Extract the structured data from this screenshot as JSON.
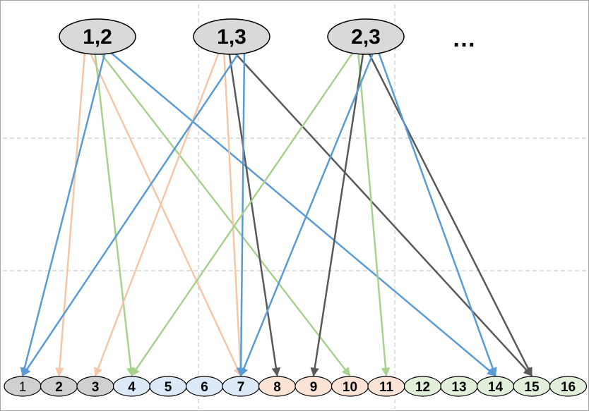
{
  "diagram": {
    "pairs": [
      "1,2",
      "1,3",
      "2,3"
    ],
    "ellipsis": "…",
    "targets": [
      "1",
      "2",
      "3",
      "4",
      "5",
      "6",
      "7",
      "8",
      "9",
      "10",
      "11",
      "12",
      "13",
      "14",
      "15",
      "16"
    ],
    "target_groups": [
      {
        "members": [
          "1",
          "2",
          "3"
        ],
        "fill": "#d0d0d0"
      },
      {
        "members": [
          "4",
          "5",
          "6",
          "7"
        ],
        "fill": "#dde9f6"
      },
      {
        "members": [
          "8",
          "9",
          "10",
          "11"
        ],
        "fill": "#fbe3d6"
      },
      {
        "members": [
          "12",
          "13",
          "14",
          "15",
          "16"
        ],
        "fill": "#e2efda"
      }
    ],
    "colors": {
      "orange": "#f4c7a8",
      "green": "#a9d18e",
      "blue": "#5b9bd5",
      "dark": "#595959",
      "node_fill_pair": "#d9d9d9",
      "grid": "#bfbfbf",
      "border": "#a6a6a6"
    },
    "edges": [
      {
        "from": "1,2",
        "to": "2",
        "color": "orange"
      },
      {
        "from": "1,2",
        "to": "7",
        "color": "orange"
      },
      {
        "from": "1,2",
        "to": "4",
        "color": "green"
      },
      {
        "from": "1,2",
        "to": "10",
        "color": "green"
      },
      {
        "from": "1,2",
        "to": "1",
        "color": "blue"
      },
      {
        "from": "1,2",
        "to": "14",
        "color": "blue"
      },
      {
        "from": "1,3",
        "to": "3",
        "color": "orange"
      },
      {
        "from": "1,3",
        "to": "7",
        "color": "orange"
      },
      {
        "from": "1,3",
        "to": "8",
        "color": "dark"
      },
      {
        "from": "1,3",
        "to": "15",
        "color": "dark"
      },
      {
        "from": "1,3",
        "to": "1",
        "color": "blue"
      },
      {
        "from": "1,3",
        "to": "7",
        "color": "blue"
      },
      {
        "from": "2,3",
        "to": "4",
        "color": "green"
      },
      {
        "from": "2,3",
        "to": "11",
        "color": "green"
      },
      {
        "from": "2,3",
        "to": "9",
        "color": "dark"
      },
      {
        "from": "2,3",
        "to": "15",
        "color": "dark"
      },
      {
        "from": "2,3",
        "to": "7",
        "color": "blue"
      },
      {
        "from": "2,3",
        "to": "14",
        "color": "blue"
      }
    ]
  }
}
